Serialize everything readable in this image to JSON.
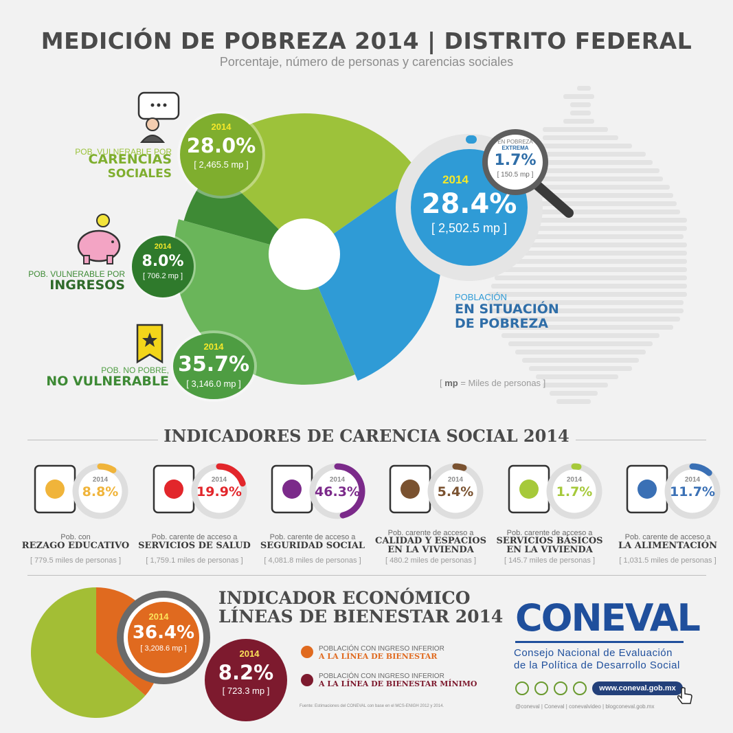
{
  "header": {
    "title": "MEDICIÓN DE POBREZA 2014 | DISTRITO FEDERAL",
    "subtitle": "Porcentaje, número de personas y carencias sociales"
  },
  "pie": {
    "carencias": {
      "label_small": "POB. VULNERABLE POR",
      "label_big_1": "CARENCIAS",
      "label_big_2": "SOCIALES",
      "year": "2014",
      "pct": "28.0%",
      "mp": "[ 2,465.5 mp ]",
      "value": 28.0,
      "color": "#9dc23a"
    },
    "ingresos": {
      "label_small": "POB. VULNERABLE POR",
      "label_big": "INGRESOS",
      "year": "2014",
      "pct": "8.0%",
      "mp": "[ 706.2 mp ]",
      "value": 8.0,
      "color": "#3e8a35"
    },
    "no_pobre": {
      "label_small": "POB. NO POBRE,",
      "label_big": "NO VULNERABLE",
      "year": "2014",
      "pct": "35.7%",
      "mp": "[ 3,146.0 mp ]",
      "value": 35.7,
      "color": "#6ab55a"
    },
    "pobreza": {
      "label_small": "POBLACIÓN",
      "label_big_1": "EN SITUACIÓN",
      "label_big_2": "DE POBREZA",
      "year": "2014",
      "pct": "28.4%",
      "mp": "[ 2,502.5 mp ]",
      "value": 28.4,
      "color": "#2f9bd6"
    },
    "extrema": {
      "label_1": "EN POBREZA",
      "label_2": "EXTREMA",
      "pct": "1.7%",
      "mp": "[ 150.5 mp ]",
      "value": 1.7
    }
  },
  "mp_note": {
    "key": "mp",
    "text": " = Miles de personas ]",
    "open": "[ "
  },
  "indicadores": {
    "title": "INDICADORES DE CARENCIA SOCIAL 2014",
    "items": [
      {
        "year": "2014",
        "pct": "8.8%",
        "value": 8.8,
        "color": "#f0b43a",
        "small": "Pob. con",
        "big_1": "REZAGO EDUCATIVO",
        "big_2": "",
        "mp": "[ 779.5 miles de personas ]",
        "icon": "book-icon"
      },
      {
        "year": "2014",
        "pct": "19.9%",
        "value": 19.9,
        "color": "#e2262b",
        "small": "Pob. carente de acceso a",
        "big_1": "SERVICIOS DE SALUD",
        "big_2": "",
        "mp": "[ 1,759.1 miles de personas ]",
        "icon": "ambulance-icon"
      },
      {
        "year": "2014",
        "pct": "46.3%",
        "value": 46.3,
        "color": "#7b2a8a",
        "small": "Pob. carente de acceso a",
        "big_1": "SEGURIDAD SOCIAL",
        "big_2": "",
        "mp": "[ 4,081.8 miles de personas ]",
        "icon": "hand-person-icon"
      },
      {
        "year": "2014",
        "pct": "5.4%",
        "value": 5.4,
        "color": "#7a5230",
        "small": "Pob. carente de acceso a",
        "big_1": "CALIDAD Y ESPACIOS",
        "big_2": "EN LA VIVIENDA",
        "mp": "[ 480.2 miles de personas ]",
        "icon": "house-icon"
      },
      {
        "year": "2014",
        "pct": "1.7%",
        "value": 1.7,
        "color": "#a6c93a",
        "small": "Pob. carente de acceso a",
        "big_1": "SERVICIOS BÁSICOS",
        "big_2": "EN LA VIVIENDA",
        "mp": "[ 145.7 miles de personas ]",
        "icon": "water-bulb-icon"
      },
      {
        "year": "2014",
        "pct": "11.7%",
        "value": 11.7,
        "color": "#3a70b5",
        "small": "Pob. carente de acceso a",
        "big_1": "LA ALIMENTACIÓN",
        "big_2": "",
        "mp": "[ 1,031.5 miles de personas ]",
        "icon": "milk-apple-icon"
      }
    ]
  },
  "economico": {
    "title_1": "INDICADOR ECONÓMICO",
    "title_2": "LÍNEAS DE BIENESTAR 2014",
    "bienestar": {
      "year": "2014",
      "pct": "36.4%",
      "mp": "[ 3,208.6 mp ]",
      "value": 36.4,
      "color": "#e06a1f",
      "legend_small": "POBLACIÓN CON INGRESO INFERIOR",
      "legend_big": "A LA LÍNEA DE BIENESTAR"
    },
    "minimo": {
      "year": "2014",
      "pct": "8.2%",
      "mp": "[ 723.3 mp ]",
      "value": 8.2,
      "color": "#7d1a2e",
      "legend_small": "POBLACIÓN CON INGRESO INFERIOR",
      "legend_big": "A LA LÍNEA DE BIENESTAR MÍNIMO"
    },
    "rest_color": "#a3be35",
    "source": "Fuente: Estimaciones del CONEVAL con base en el MCS-ENIGH 2012 y 2014."
  },
  "coneval": {
    "logo": "CONEVAL",
    "name_1": "Consejo Nacional de Evaluación",
    "name_2": "de la Política de Desarrollo Social",
    "url": "www.coneval.gob.mx",
    "social_text": "@coneval  |  Coneval  |  conevalvideo  |  blogconeval.gob.mx",
    "social_icons": [
      "twitter-icon",
      "facebook-icon",
      "youtube-icon",
      "blog-icon"
    ]
  }
}
